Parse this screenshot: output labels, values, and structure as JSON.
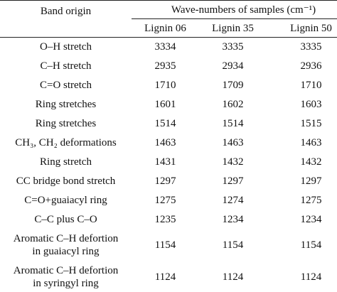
{
  "table": {
    "header": {
      "band_origin": "Band origin",
      "group": "Wave-numbers of samples (cm⁻¹)",
      "columns": [
        "Lignin 06",
        "Lignin 35",
        "Lignin 50"
      ]
    },
    "rows": [
      [
        [
          "O–H stretch"
        ],
        3334,
        3335,
        3335
      ],
      [
        [
          "C–H stretch"
        ],
        2935,
        2934,
        2936
      ],
      [
        [
          "C=O stretch"
        ],
        1710,
        1709,
        1710
      ],
      [
        [
          "Ring stretches"
        ],
        1601,
        1602,
        1603
      ],
      [
        [
          "Ring stretches"
        ],
        1514,
        1514,
        1515
      ],
      [
        [
          "CH₃, CH₂ deformations"
        ],
        1463,
        1463,
        1463
      ],
      [
        [
          "Ring stretch"
        ],
        1431,
        1432,
        1432
      ],
      [
        [
          "CC bridge bond stretch"
        ],
        1297,
        1297,
        1297
      ],
      [
        [
          "C=O+guaiacyl ring"
        ],
        1275,
        1274,
        1275
      ],
      [
        [
          "C–C plus C–O"
        ],
        1235,
        1234,
        1234
      ],
      [
        [
          "Aromatic C–H defortion",
          "in guaiacyl ring"
        ],
        1154,
        1154,
        1154
      ],
      [
        [
          "Aromatic C–H defortion",
          "in syringyl ring"
        ],
        1124,
        1124,
        1124
      ]
    ]
  }
}
